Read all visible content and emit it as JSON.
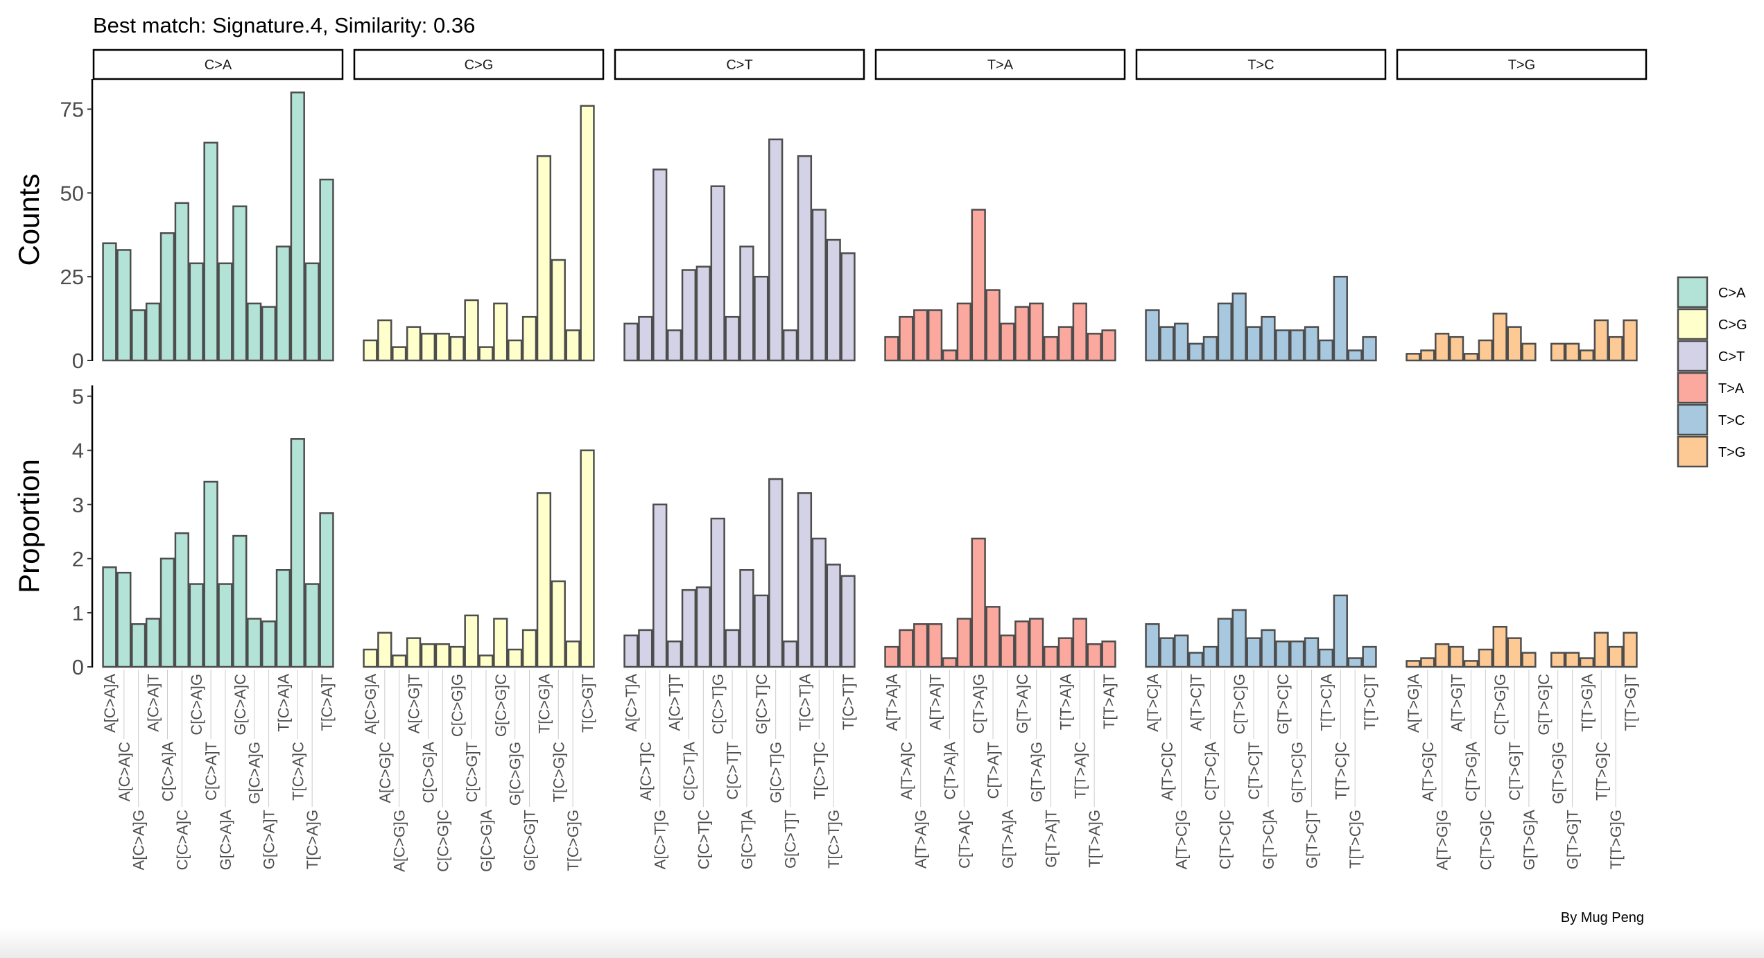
{
  "chart_data": {
    "type": "bar",
    "title": "Best match: Signature.4, Similarity: 0.36",
    "caption": "By Mug Peng",
    "panels": [
      {
        "key": "counts",
        "ylabel": "Counts",
        "ylim": [
          0,
          84
        ],
        "yticks": [
          0,
          25,
          50,
          75
        ]
      },
      {
        "key": "proportion",
        "ylabel": "Proportion",
        "ylim": [
          0,
          5.2
        ],
        "yticks": [
          0,
          1,
          2,
          3,
          4,
          5
        ]
      }
    ],
    "legend": {
      "position": "right",
      "entries": [
        "C>A",
        "C>G",
        "C>T",
        "T>A",
        "T>C",
        "T>G"
      ]
    },
    "bar_outline_color": "#4d4d4d",
    "facets": [
      {
        "name": "C>A",
        "color": "#B3E2D6",
        "categories": [
          "A[C>A]A",
          "A[C>A]C",
          "A[C>A]G",
          "A[C>A]T",
          "C[C>A]A",
          "C[C>A]C",
          "C[C>A]G",
          "C[C>A]T",
          "G[C>A]A",
          "G[C>A]C",
          "G[C>A]G",
          "G[C>A]T",
          "T[C>A]A",
          "T[C>A]C",
          "T[C>A]G",
          "T[C>A]T"
        ],
        "counts": [
          35,
          33,
          15,
          17,
          38,
          47,
          29,
          65,
          29,
          46,
          17,
          16,
          34,
          80,
          29,
          54
        ],
        "proportion": [
          1.84,
          1.74,
          0.79,
          0.89,
          2.0,
          2.47,
          1.53,
          3.42,
          1.53,
          2.42,
          0.89,
          0.84,
          1.79,
          4.21,
          1.53,
          2.84
        ]
      },
      {
        "name": "C>G",
        "color": "#FFFFCC",
        "categories": [
          "A[C>G]A",
          "A[C>G]C",
          "A[C>G]G",
          "A[C>G]T",
          "C[C>G]A",
          "C[C>G]C",
          "C[C>G]G",
          "C[C>G]T",
          "G[C>G]A",
          "G[C>G]C",
          "G[C>G]G",
          "G[C>G]T",
          "T[C>G]A",
          "T[C>G]C",
          "T[C>G]G",
          "T[C>G]T"
        ],
        "counts": [
          6,
          12,
          4,
          10,
          8,
          8,
          7,
          18,
          4,
          17,
          6,
          13,
          61,
          30,
          9,
          76
        ],
        "proportion": [
          0.32,
          0.63,
          0.21,
          0.53,
          0.42,
          0.42,
          0.37,
          0.95,
          0.21,
          0.89,
          0.32,
          0.68,
          3.21,
          1.58,
          0.47,
          4.0
        ]
      },
      {
        "name": "C>T",
        "color": "#D3D2E6",
        "categories": [
          "A[C>T]A",
          "A[C>T]C",
          "A[C>T]G",
          "A[C>T]T",
          "C[C>T]A",
          "C[C>T]C",
          "C[C>T]G",
          "C[C>T]T",
          "G[C>T]A",
          "G[C>T]C",
          "G[C>T]G",
          "G[C>T]T",
          "T[C>T]A",
          "T[C>T]C",
          "T[C>T]G",
          "T[C>T]T"
        ],
        "counts": [
          11,
          13,
          57,
          9,
          27,
          28,
          52,
          13,
          34,
          25,
          66,
          9,
          61,
          45,
          36,
          32
        ],
        "proportion": [
          0.58,
          0.68,
          3.0,
          0.47,
          1.42,
          1.47,
          2.74,
          0.68,
          1.79,
          1.32,
          3.47,
          0.47,
          3.21,
          2.37,
          1.89,
          1.68
        ]
      },
      {
        "name": "T>A",
        "color": "#FBA99F",
        "categories": [
          "A[T>A]A",
          "A[T>A]C",
          "A[T>A]G",
          "A[T>A]T",
          "C[T>A]A",
          "C[T>A]C",
          "C[T>A]G",
          "C[T>A]T",
          "G[T>A]A",
          "G[T>A]C",
          "G[T>A]G",
          "G[T>A]T",
          "T[T>A]A",
          "T[T>A]C",
          "T[T>A]G",
          "T[T>A]T"
        ],
        "counts": [
          7,
          13,
          15,
          15,
          3,
          17,
          45,
          21,
          11,
          16,
          17,
          7,
          10,
          17,
          8,
          9
        ],
        "proportion": [
          0.37,
          0.68,
          0.79,
          0.79,
          0.16,
          0.89,
          2.37,
          1.11,
          0.58,
          0.84,
          0.89,
          0.37,
          0.53,
          0.89,
          0.42,
          0.47
        ]
      },
      {
        "name": "T>C",
        "color": "#A8C8DF",
        "categories": [
          "A[T>C]A",
          "A[T>C]C",
          "A[T>C]G",
          "A[T>C]T",
          "C[T>C]A",
          "C[T>C]C",
          "C[T>C]G",
          "C[T>C]T",
          "G[T>C]A",
          "G[T>C]C",
          "G[T>C]G",
          "G[T>C]T",
          "T[T>C]A",
          "T[T>C]C",
          "T[T>C]G",
          "T[T>C]T"
        ],
        "counts": [
          15,
          10,
          11,
          5,
          7,
          17,
          20,
          10,
          13,
          9,
          9,
          10,
          6,
          25,
          3,
          7
        ],
        "proportion": [
          0.79,
          0.53,
          0.58,
          0.26,
          0.37,
          0.89,
          1.05,
          0.53,
          0.68,
          0.47,
          0.47,
          0.53,
          0.32,
          1.32,
          0.16,
          0.37
        ]
      },
      {
        "name": "T>G",
        "color": "#FDCA95",
        "categories": [
          "A[T>G]A",
          "A[T>G]C",
          "A[T>G]G",
          "A[T>G]T",
          "C[T>G]A",
          "C[T>G]C",
          "C[T>G]G",
          "C[T>G]T",
          "G[T>G]A",
          "G[T>G]C",
          "G[T>G]G",
          "G[T>G]T",
          "T[T>G]A",
          "T[T>G]C",
          "T[T>G]G",
          "T[T>G]T"
        ],
        "counts": [
          2,
          3,
          8,
          7,
          2,
          6,
          14,
          10,
          5,
          0,
          5,
          5,
          3,
          12,
          7,
          12
        ],
        "proportion": [
          0.11,
          0.16,
          0.42,
          0.37,
          0.11,
          0.32,
          0.74,
          0.53,
          0.26,
          0.0,
          0.26,
          0.26,
          0.16,
          0.63,
          0.37,
          0.63
        ]
      }
    ]
  }
}
